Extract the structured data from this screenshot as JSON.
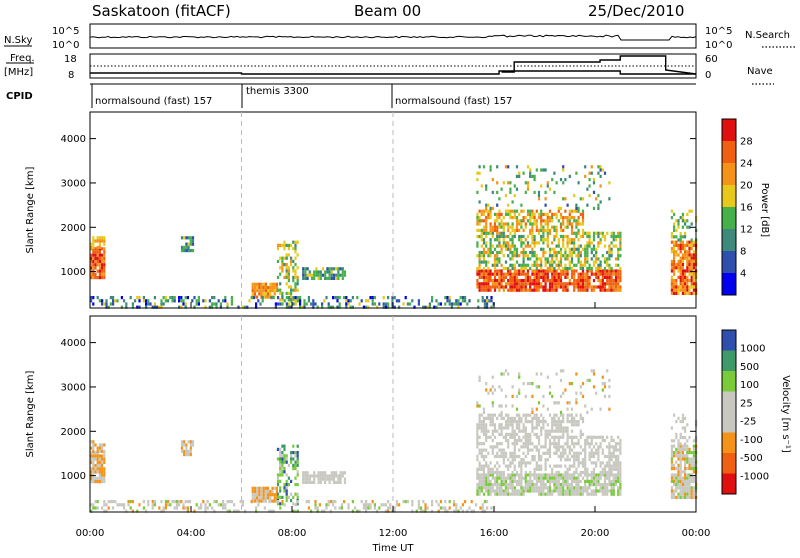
{
  "header": {
    "station": "Saskatoon (fitACF)",
    "beam": "Beam 00",
    "date": "25/Dec/2010"
  },
  "strip_labels": {
    "nsky": "N.Sky",
    "nsearch": "N.Search",
    "freq": "Freq.",
    "freq_unit": "[MHz]",
    "nave": "Nave",
    "cpid": "CPID",
    "nsky_ticks": [
      "10^5",
      "10^0"
    ],
    "freq_ticks": [
      "18",
      "8"
    ],
    "nave_ticks": [
      "60",
      "0"
    ]
  },
  "cpid_segments": [
    {
      "label": "normalsound (fast) 157",
      "start_hour": 0
    },
    {
      "label": "themis 3300",
      "start_hour": 6
    },
    {
      "label": "normalsound (fast) 157",
      "start_hour": 12
    }
  ],
  "colors": {
    "power": [
      "#0000ee",
      "#2f4faf",
      "#3e8a7a",
      "#46b04a",
      "#e8c81a",
      "#f49318",
      "#f06010",
      "#e01010"
    ],
    "velocity": [
      "#e01010",
      "#f06010",
      "#f49318",
      "#c8c8c0",
      "#c8c8c0",
      "#7acb3a",
      "#3f9a6a",
      "#2f4faf"
    ],
    "grid": "#bbbbbb",
    "axis": "#000000"
  },
  "chart_data": [
    {
      "type": "heatmap",
      "name": "power",
      "ylabel": "Slant Range [km]",
      "colorbar_label": "Power [dB]",
      "colorbar_ticks": [
        "28",
        "24",
        "20",
        "16",
        "12",
        "8",
        "4"
      ],
      "ylim": [
        180,
        4600
      ],
      "yticks": [
        1000,
        2000,
        3000,
        4000
      ],
      "ytick_labels": [
        "1000",
        "2000",
        "3000",
        "4000"
      ]
    },
    {
      "type": "heatmap",
      "name": "velocity",
      "ylabel": "Slant Range [km]",
      "colorbar_label": "Velocity [m s⁻¹]",
      "colorbar_ticks": [
        "1000",
        "500",
        "100",
        "25",
        "-25",
        "-100",
        "-500",
        "-1000"
      ],
      "ylim": [
        180,
        4600
      ],
      "yticks": [
        1000,
        2000,
        3000,
        4000
      ],
      "ytick_labels": [
        "1000",
        "2000",
        "3000",
        "4000"
      ]
    }
  ],
  "x_axis": {
    "label": "Time UT",
    "xlim_hours": [
      0,
      24
    ],
    "ticks_hours": [
      0,
      4,
      8,
      12,
      16,
      20,
      24
    ],
    "tick_labels": [
      "00:00",
      "04:00",
      "08:00",
      "12:00",
      "16:00",
      "20:00",
      "00:00"
    ]
  },
  "regions": [
    {
      "t0": 0.0,
      "t1": 0.6,
      "r0": 850,
      "r1": 1550,
      "density": 0.9,
      "power": [
        5,
        7
      ],
      "vel": [
        2,
        3
      ]
    },
    {
      "t0": 0.0,
      "t1": 0.6,
      "r0": 1550,
      "r1": 1800,
      "density": 0.6,
      "power": [
        4,
        5
      ],
      "vel": [
        2,
        3
      ]
    },
    {
      "t0": 3.6,
      "t1": 4.1,
      "r0": 1450,
      "r1": 1800,
      "density": 0.8,
      "power": [
        1,
        4
      ],
      "vel": [
        2,
        3
      ]
    },
    {
      "t0": 6.4,
      "t1": 7.4,
      "r0": 450,
      "r1": 750,
      "density": 0.9,
      "power": [
        4,
        6
      ],
      "vel": [
        2,
        3
      ]
    },
    {
      "t0": 7.4,
      "t1": 8.2,
      "r0": 400,
      "r1": 1700,
      "density": 0.45,
      "power": [
        2,
        5
      ],
      "vel": [
        4,
        7
      ]
    },
    {
      "t0": 8.4,
      "t1": 10.1,
      "r0": 850,
      "r1": 1100,
      "density": 0.75,
      "power": [
        1,
        4
      ],
      "vel": [
        3,
        4
      ]
    },
    {
      "t0": 0.0,
      "t1": 16.0,
      "r0": 180,
      "r1": 450,
      "density": 0.35,
      "power": [
        0,
        4
      ],
      "vel": [
        2,
        5
      ]
    },
    {
      "t0": 15.3,
      "t1": 21.0,
      "r0": 550,
      "r1": 1050,
      "density": 0.85,
      "power": [
        5,
        7
      ],
      "vel": [
        3,
        5
      ]
    },
    {
      "t0": 15.3,
      "t1": 21.0,
      "r0": 1050,
      "r1": 1900,
      "density": 0.55,
      "power": [
        2,
        5
      ],
      "vel": [
        3,
        4
      ]
    },
    {
      "t0": 15.3,
      "t1": 19.5,
      "r0": 1900,
      "r1": 2400,
      "density": 0.6,
      "power": [
        3,
        6
      ],
      "vel": [
        3,
        4
      ]
    },
    {
      "t0": 15.3,
      "t1": 20.6,
      "r0": 2400,
      "r1": 3400,
      "density": 0.12,
      "power": [
        1,
        5
      ],
      "vel": [
        2,
        5
      ]
    },
    {
      "t0": 23.0,
      "t1": 24.0,
      "r0": 500,
      "r1": 1700,
      "density": 0.85,
      "power": [
        4,
        7
      ],
      "vel": [
        2,
        5
      ]
    },
    {
      "t0": 23.0,
      "t1": 24.0,
      "r0": 1700,
      "r1": 2400,
      "density": 0.3,
      "power": [
        2,
        4
      ],
      "vel": [
        3,
        4
      ]
    }
  ]
}
